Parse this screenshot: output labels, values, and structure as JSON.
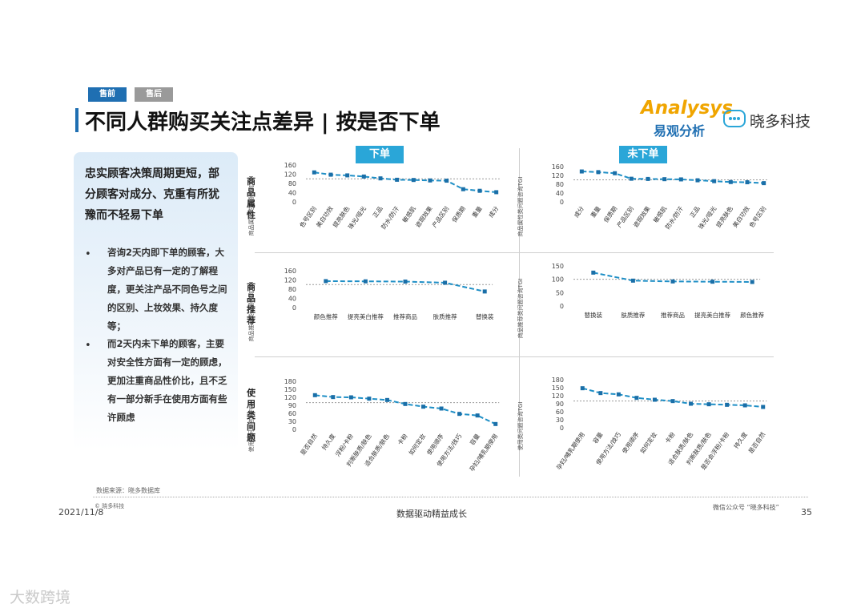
{
  "tabs": [
    "售前",
    "售后"
  ],
  "title": "不同人群购买关注点差异 | 按是否下单",
  "brands": {
    "analysys": "Analysys",
    "analysys_cn": "易观分析",
    "xiaoduo": "晓多科技"
  },
  "left_panel": {
    "headline": "忠实顾客决策周期更短，部分顾客对成分、克重有所犹豫而不轻易下单",
    "bullets": [
      "咨询2天内即下单的顾客，大多对产品已有一定的了解程度，更关注产品不同色号之间的区别、上妆效果、持久度等；",
      "而2天内未下单的顾客，主要对安全性方面有一定的顾虑，更加注重商品性价比，且不乏有一部分新手在使用方面有些许顾虑"
    ]
  },
  "column_headers": [
    "下单",
    "未下单"
  ],
  "section_labels": [
    "商品属性",
    "商品推荐",
    "使用类问题"
  ],
  "ylabel_attr": "商品属性类问题咨询TGI",
  "ylabel_rec": "商品推荐类问题咨询TGI",
  "ylabel_use": "使用类问题咨询TGI",
  "colors": {
    "accent": "#1f6fb2",
    "series": "#1f8fc6",
    "header": "#2aa6d8"
  },
  "chart_data": [
    {
      "type": "line",
      "id": "attr-order",
      "ylabel": "商品属性类问题咨询TGI",
      "ylim": [
        0,
        160
      ],
      "yticks": [
        0,
        40,
        80,
        120,
        160
      ],
      "ref": 100,
      "categories": [
        "色号区别",
        "美白功效",
        "提亮肤色",
        "珠光/哑光",
        "正品",
        "防水/防汗",
        "敏感肌",
        "遮瑕效果",
        "产品区别",
        "保质期",
        "重量",
        "成分"
      ],
      "values": [
        128,
        118,
        115,
        110,
        102,
        96,
        95,
        93,
        92,
        55,
        48,
        42
      ]
    },
    {
      "type": "line",
      "id": "attr-noorder",
      "ylabel": "商品属性类问题咨询TGI",
      "ylim": [
        0,
        160
      ],
      "yticks": [
        0,
        40,
        80,
        120,
        160
      ],
      "ref": 100,
      "categories": [
        "成分",
        "重量",
        "保质期",
        "产品区别",
        "遮瑕效果",
        "敏感肌",
        "防水/防汗",
        "正品",
        "珠光/哑光",
        "提亮肤色",
        "美白功效",
        "色号区别"
      ],
      "values": [
        138,
        135,
        130,
        105,
        104,
        103,
        102,
        98,
        94,
        90,
        89,
        85
      ]
    },
    {
      "type": "line",
      "id": "rec-order",
      "ylabel": "商品推荐类问题咨询TGI",
      "ylim": [
        0,
        160
      ],
      "yticks": [
        0,
        40,
        80,
        120,
        160
      ],
      "ref": 100,
      "categories": [
        "颜色推荐",
        "提亮美白推荐",
        "推荐商品",
        "肤质推荐",
        "替换装"
      ],
      "values": [
        115,
        114,
        113,
        108,
        70
      ]
    },
    {
      "type": "line",
      "id": "rec-noorder",
      "ylabel": "商品推荐类问题咨询TGI",
      "ylim": [
        0,
        150
      ],
      "yticks": [
        0,
        50,
        100,
        150
      ],
      "ref": 100,
      "categories": [
        "替换装",
        "肤质推荐",
        "推荐商品",
        "提亮美白推荐",
        "颜色推荐"
      ],
      "values": [
        125,
        95,
        92,
        91,
        90
      ]
    },
    {
      "type": "line",
      "id": "use-order",
      "ylabel": "使用类问题咨询TGI",
      "ylim": [
        0,
        180
      ],
      "yticks": [
        0,
        30,
        60,
        90,
        120,
        150,
        180
      ],
      "ref": 100,
      "categories": [
        "是否自然",
        "持久度",
        "浮粉/卡粉",
        "判断肤质/肤色",
        "适合肤质/肤色",
        "卡粉",
        "如何定妆",
        "使用顺序",
        "使用方法/技巧",
        "容量",
        "孕妇/哺乳期使用"
      ],
      "values": [
        128,
        121,
        120,
        115,
        110,
        95,
        85,
        78,
        58,
        52,
        20
      ]
    },
    {
      "type": "line",
      "id": "use-noorder",
      "ylabel": "使用类问题咨询TGI",
      "ylim": [
        0,
        180
      ],
      "yticks": [
        0,
        30,
        60,
        90,
        120,
        150,
        180
      ],
      "ref": 100,
      "categories": [
        "孕妇/哺乳期使用",
        "容量",
        "使用方法/技巧",
        "使用顺序",
        "如何定妆",
        "卡粉",
        "适合肤质/肤色",
        "判断肤质/肤色",
        "是否会浮粉/卡粉",
        "持久度",
        "是否自然"
      ],
      "values": [
        148,
        130,
        125,
        112,
        105,
        100,
        90,
        88,
        86,
        84,
        78
      ]
    }
  ],
  "footer": {
    "source": "数据来源：晓多数据库",
    "date": "2021/11/8",
    "brand": "© 晓多科技",
    "center": "数据驱动精益成长",
    "right": "微信公众号 “晓多科技”",
    "page": "35"
  },
  "watermark": "大数跨境"
}
